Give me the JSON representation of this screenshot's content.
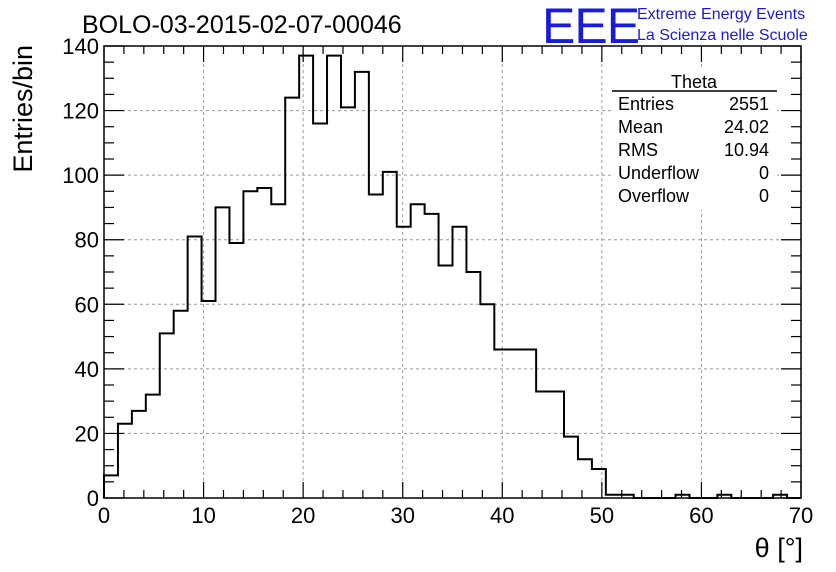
{
  "chart_data": {
    "type": "bar",
    "style": "step-histogram",
    "title": "BOLO-03-2015-02-07-00046",
    "xlabel": "θ [°]",
    "ylabel": "Entries/bin",
    "xlim": [
      0,
      70
    ],
    "ylim": [
      0,
      140
    ],
    "x_ticks": [
      0,
      10,
      20,
      30,
      40,
      50,
      60,
      70
    ],
    "y_ticks": [
      0,
      20,
      40,
      60,
      80,
      100,
      120,
      140
    ],
    "grid": true,
    "bin_width": 1.4,
    "bin_edges_start": 0,
    "values": [
      7,
      23,
      27,
      32,
      51,
      58,
      81,
      61,
      90,
      79,
      95,
      96,
      91,
      124,
      137,
      116,
      137,
      121,
      132,
      94,
      101,
      84,
      91,
      88,
      72,
      84,
      70,
      60,
      46,
      46,
      46,
      33,
      33,
      19,
      12,
      9,
      1,
      1,
      0,
      0,
      0,
      1,
      0,
      0,
      1,
      0,
      0,
      0,
      1,
      0
    ],
    "stats": {
      "name": "Theta",
      "rows": [
        {
          "label": "Entries",
          "value": "2551"
        },
        {
          "label": "Mean",
          "value": "24.02"
        },
        {
          "label": "RMS",
          "value": "10.94"
        },
        {
          "label": "Underflow",
          "value": "0"
        },
        {
          "label": "Overflow",
          "value": "0"
        }
      ]
    }
  },
  "logo": {
    "mark": "EEE",
    "line1": "Extreme Energy Events",
    "line2": "La Scienza nelle Scuole",
    "color": "#1a1adc"
  }
}
